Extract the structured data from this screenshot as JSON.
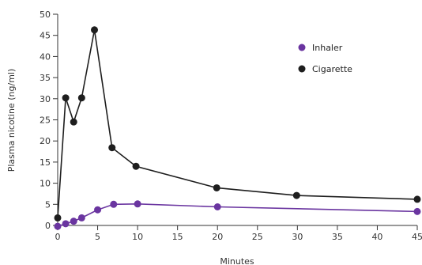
{
  "chart_data": {
    "type": "line",
    "title": "",
    "xlabel": "Minutes",
    "ylabel": "Plasma nicotine (ng/ml)",
    "xlim": [
      0,
      45
    ],
    "ylim": [
      0,
      50
    ],
    "x_ticks": [
      "0",
      "5",
      "10",
      "15",
      "20",
      "25",
      "30",
      "35",
      "40",
      "45"
    ],
    "y_ticks": [
      "0",
      "5",
      "10",
      "15",
      "20",
      "25",
      "30",
      "35",
      "40",
      "45",
      "50"
    ],
    "grid": false,
    "legend_position": "top-right",
    "series": [
      {
        "name": "Inhaler",
        "color": "#6a35a0",
        "x": [
          0,
          1,
          2,
          3,
          5,
          7,
          10,
          20,
          45
        ],
        "y": [
          -0.2,
          0.4,
          1.0,
          1.8,
          3.7,
          5.0,
          5.1,
          4.4,
          3.3
        ]
      },
      {
        "name": "Cigarette",
        "color": "#1e1e1e",
        "x": [
          0,
          1,
          2,
          3,
          4.6,
          6.8,
          9.8,
          19.9,
          29.9,
          45
        ],
        "y": [
          1.8,
          30.2,
          24.5,
          30.2,
          46.3,
          18.4,
          14.0,
          8.9,
          7.1,
          6.2
        ]
      }
    ]
  }
}
